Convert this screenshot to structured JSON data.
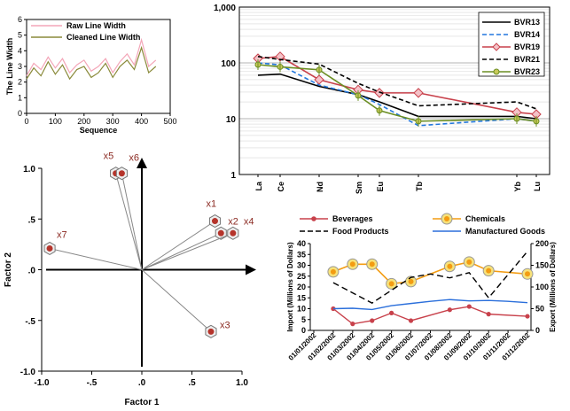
{
  "chart_data": [
    {
      "type": "line",
      "xlabel": "Sequence",
      "ylabel": "The Line Width",
      "xlim": [
        0,
        500
      ],
      "ylim": [
        0,
        6
      ],
      "xticks": [
        "0",
        "100",
        "200",
        "300",
        "400",
        "500"
      ],
      "yticks": [
        "0",
        "1",
        "2",
        "3",
        "4",
        "5",
        "6"
      ],
      "legend": "top-left",
      "grid": false,
      "series": [
        {
          "name": "Raw Line Width",
          "color": "#f4a6b8",
          "x": [
            0,
            25,
            50,
            75,
            100,
            125,
            150,
            175,
            200,
            225,
            250,
            275,
            300,
            325,
            350,
            375,
            400,
            425,
            450
          ],
          "values": [
            2.4,
            3.2,
            2.8,
            3.6,
            2.9,
            3.5,
            2.6,
            3.1,
            3.4,
            2.7,
            3.0,
            3.5,
            2.6,
            3.3,
            3.8,
            3.1,
            4.7,
            3.0,
            3.4
          ]
        },
        {
          "name": "Cleaned Line Width",
          "color": "#8a8a3a",
          "x": [
            0,
            25,
            50,
            75,
            100,
            125,
            150,
            175,
            200,
            225,
            250,
            275,
            300,
            325,
            350,
            375,
            400,
            425,
            450
          ],
          "values": [
            2.2,
            2.9,
            2.4,
            3.3,
            2.5,
            3.1,
            2.2,
            2.8,
            3.0,
            2.3,
            2.6,
            3.2,
            2.3,
            3.0,
            3.4,
            2.8,
            4.2,
            2.6,
            3.0
          ]
        }
      ]
    },
    {
      "type": "line",
      "yscale": "log",
      "ylim": [
        1,
        1000
      ],
      "yticks": [
        "1",
        "10",
        "100",
        "1,000"
      ],
      "categories": [
        "La",
        "Ce",
        "Nd",
        "Sm",
        "Eu",
        "Tb",
        "Yb",
        "Lu"
      ],
      "legend": "top-right",
      "grid": true,
      "series": [
        {
          "name": "BVR13",
          "color": "#000000",
          "dash": "solid",
          "marker": "none",
          "values": [
            60,
            63,
            38,
            27,
            20,
            11,
            11,
            10
          ]
        },
        {
          "name": "BVR14",
          "color": "#2277dd",
          "dash": "dashed",
          "marker": "none",
          "values": [
            100,
            92,
            40,
            27,
            18,
            7.5,
            10,
            9
          ]
        },
        {
          "name": "BVR19",
          "color": "#c8414b",
          "dash": "solid",
          "marker": "diamond",
          "values": [
            120,
            130,
            50,
            33,
            29,
            29,
            13,
            12
          ]
        },
        {
          "name": "BVR21",
          "color": "#000000",
          "dash": "dashed",
          "marker": "none",
          "values": [
            130,
            115,
            95,
            43,
            30,
            17,
            20,
            15
          ]
        },
        {
          "name": "BVR23",
          "color": "#6b8e23",
          "dash": "solid",
          "marker": "star",
          "values": [
            93,
            85,
            75,
            26,
            14,
            9,
            10,
            9
          ]
        }
      ]
    },
    {
      "type": "scatter",
      "xlabel": "Factor 1",
      "ylabel": "Factor 2",
      "xlim": [
        -1.0,
        1.0
      ],
      "ylim": [
        -1.0,
        1.0
      ],
      "xticks": [
        "-1.0",
        "-.5",
        ".0",
        ".5",
        "1.0"
      ],
      "yticks": [
        "-1.0",
        "-.5",
        ".0",
        ".5",
        "1.0"
      ],
      "grid": false,
      "points": [
        {
          "label": "x1",
          "x": 0.73,
          "y": 0.48
        },
        {
          "label": "x2",
          "x": 0.79,
          "y": 0.36
        },
        {
          "label": "x3",
          "x": 0.69,
          "y": -0.61
        },
        {
          "label": "x4",
          "x": 0.91,
          "y": 0.36
        },
        {
          "label": "x5",
          "x": -0.26,
          "y": 0.95
        },
        {
          "label": "x6",
          "x": -0.2,
          "y": 0.95
        },
        {
          "label": "x7",
          "x": -0.92,
          "y": 0.21
        }
      ]
    },
    {
      "type": "line",
      "ylabel": "Import (Millions of Dollars)",
      "y2label": "Export (Millions of Dollars)",
      "ylim": [
        0,
        40
      ],
      "y2lim": [
        0,
        200
      ],
      "yticks": [
        "0",
        "5",
        "10",
        "15",
        "20",
        "25",
        "30",
        "35",
        "40"
      ],
      "y2ticks": [
        "0",
        "50",
        "100",
        "150",
        "200"
      ],
      "categories": [
        "01/01/2002",
        "01/02/2002",
        "01/03/2002",
        "01/04/2002",
        "01/05/2002",
        "01/06/2002",
        "01/07/2002",
        "01/08/2002",
        "01/09/2002",
        "01/10/2002",
        "01/11/2002",
        "01/12/2002"
      ],
      "legend": "top",
      "series": [
        {
          "name": "Beverages",
          "color": "#c8414b",
          "marker": "circle",
          "axis": "left",
          "x": [
            1,
            2,
            3,
            4,
            5,
            7,
            8,
            9,
            11
          ],
          "values": [
            10,
            3,
            4.5,
            8,
            4.5,
            9.5,
            11,
            7.5,
            6.5
          ]
        },
        {
          "name": "Chemicals",
          "color": "#f39c12",
          "marker": "circle-large",
          "axis": "left",
          "x": [
            1,
            2,
            3,
            4,
            5,
            7,
            8,
            9,
            11
          ],
          "values": [
            27,
            30.5,
            30.5,
            21.5,
            22.5,
            29.5,
            31.5,
            27.5,
            26
          ]
        },
        {
          "name": "Food Products",
          "color": "#000000",
          "dash": "dashed",
          "axis": "right",
          "x": [
            1,
            3,
            5,
            6,
            7,
            8,
            9,
            11
          ],
          "values": [
            110,
            63,
            122,
            130,
            121,
            133,
            75,
            182
          ]
        },
        {
          "name": "Manufactured Goods",
          "color": "#2b6fdb",
          "dash": "solid",
          "axis": "right",
          "x": [
            1,
            2,
            3,
            4,
            5,
            6,
            7,
            8,
            9,
            10,
            11
          ],
          "values": [
            50,
            51,
            48,
            57,
            62,
            67,
            71,
            68,
            69,
            67,
            64
          ]
        }
      ]
    }
  ]
}
